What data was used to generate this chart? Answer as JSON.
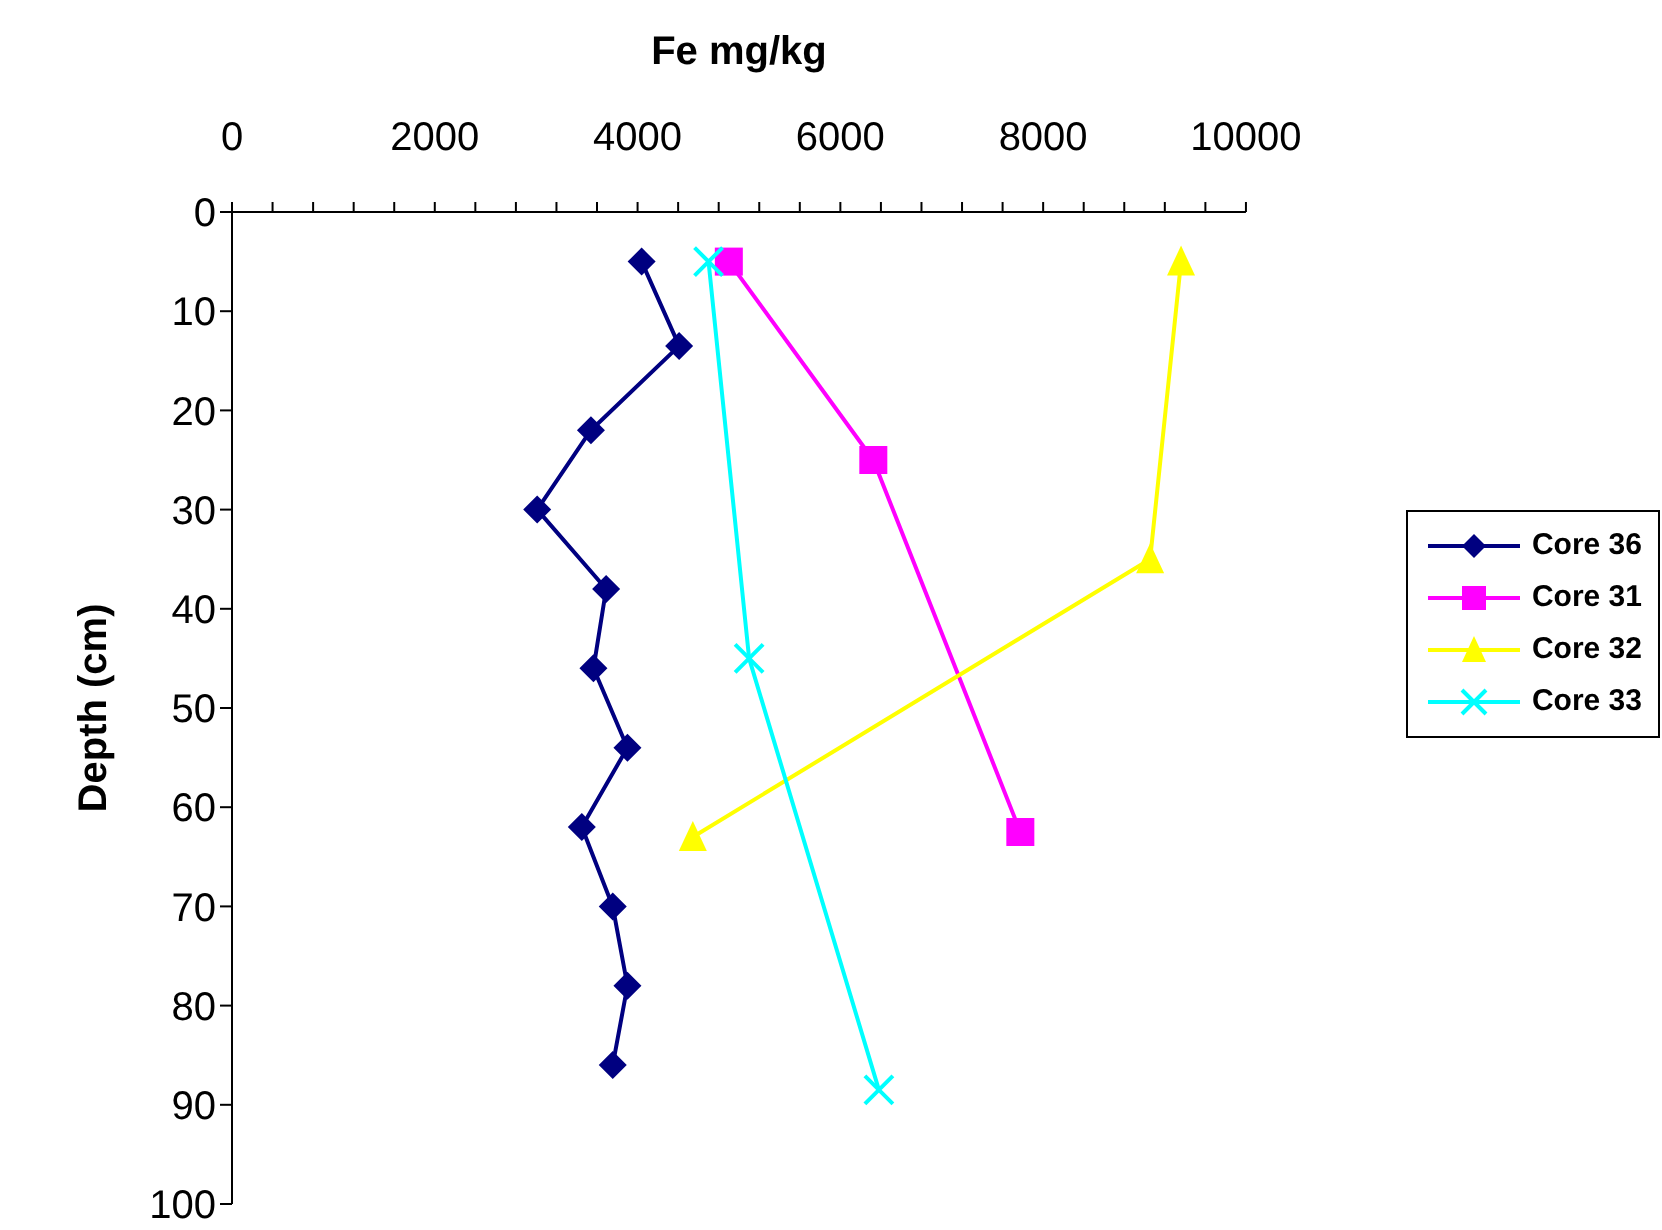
{
  "chart_data": {
    "type": "line",
    "xlabel": "Fe mg/kg",
    "ylabel": "Depth (cm)",
    "xlim": [
      0,
      10000
    ],
    "xticks": [
      0,
      {
        "value": 400,
        "label": null
      },
      {
        "value": 800,
        "label": null
      },
      {
        "value": 1200,
        "label": null
      },
      {
        "value": 1600,
        "label": null
      },
      2000,
      {
        "value": 2400,
        "label": null
      },
      {
        "value": 2800,
        "label": null
      },
      {
        "value": 3200,
        "label": null
      },
      {
        "value": 3600,
        "label": null
      },
      4000,
      {
        "value": 4400,
        "label": null
      },
      {
        "value": 4800,
        "label": null
      },
      {
        "value": 5200,
        "label": null
      },
      {
        "value": 5600,
        "label": null
      },
      6000,
      {
        "value": 6400,
        "label": null
      },
      {
        "value": 6800,
        "label": null
      },
      {
        "value": 7200,
        "label": null
      },
      {
        "value": 7600,
        "label": null
      },
      8000,
      {
        "value": 8400,
        "label": null
      },
      {
        "value": 8800,
        "label": null
      },
      {
        "value": 9200,
        "label": null
      },
      {
        "value": 9600,
        "label": null
      },
      10000
    ],
    "ylim": [
      100,
      0
    ],
    "yticks": [
      0,
      10,
      20,
      30,
      40,
      50,
      60,
      70,
      80,
      90,
      100
    ],
    "grid": false,
    "legend": "right",
    "line_style": "solid",
    "series": [
      {
        "name": "Core 36",
        "color": "#000080",
        "marker": "diamond",
        "x": [
          4040,
          4410,
          3540,
          3010,
          3690,
          3565,
          3900,
          3450,
          3755,
          3900,
          3755
        ],
        "values": [
          5,
          13.5,
          22,
          30,
          38,
          46,
          54,
          62,
          70,
          78,
          86
        ]
      },
      {
        "name": "Core 31",
        "color": "#ff00ff",
        "marker": "square",
        "x": [
          4900,
          6325,
          7775
        ],
        "values": [
          5,
          25,
          62.5
        ]
      },
      {
        "name": "Core 32",
        "color": "#ffff00",
        "marker": "triangle",
        "x": [
          9360,
          9055,
          4545
        ],
        "values": [
          5,
          35,
          63
        ]
      },
      {
        "name": "Core 33",
        "color": "#00ffff",
        "marker": "cross",
        "x": [
          4700,
          5100,
          6380
        ],
        "values": [
          5,
          45,
          88.5
        ]
      }
    ]
  }
}
